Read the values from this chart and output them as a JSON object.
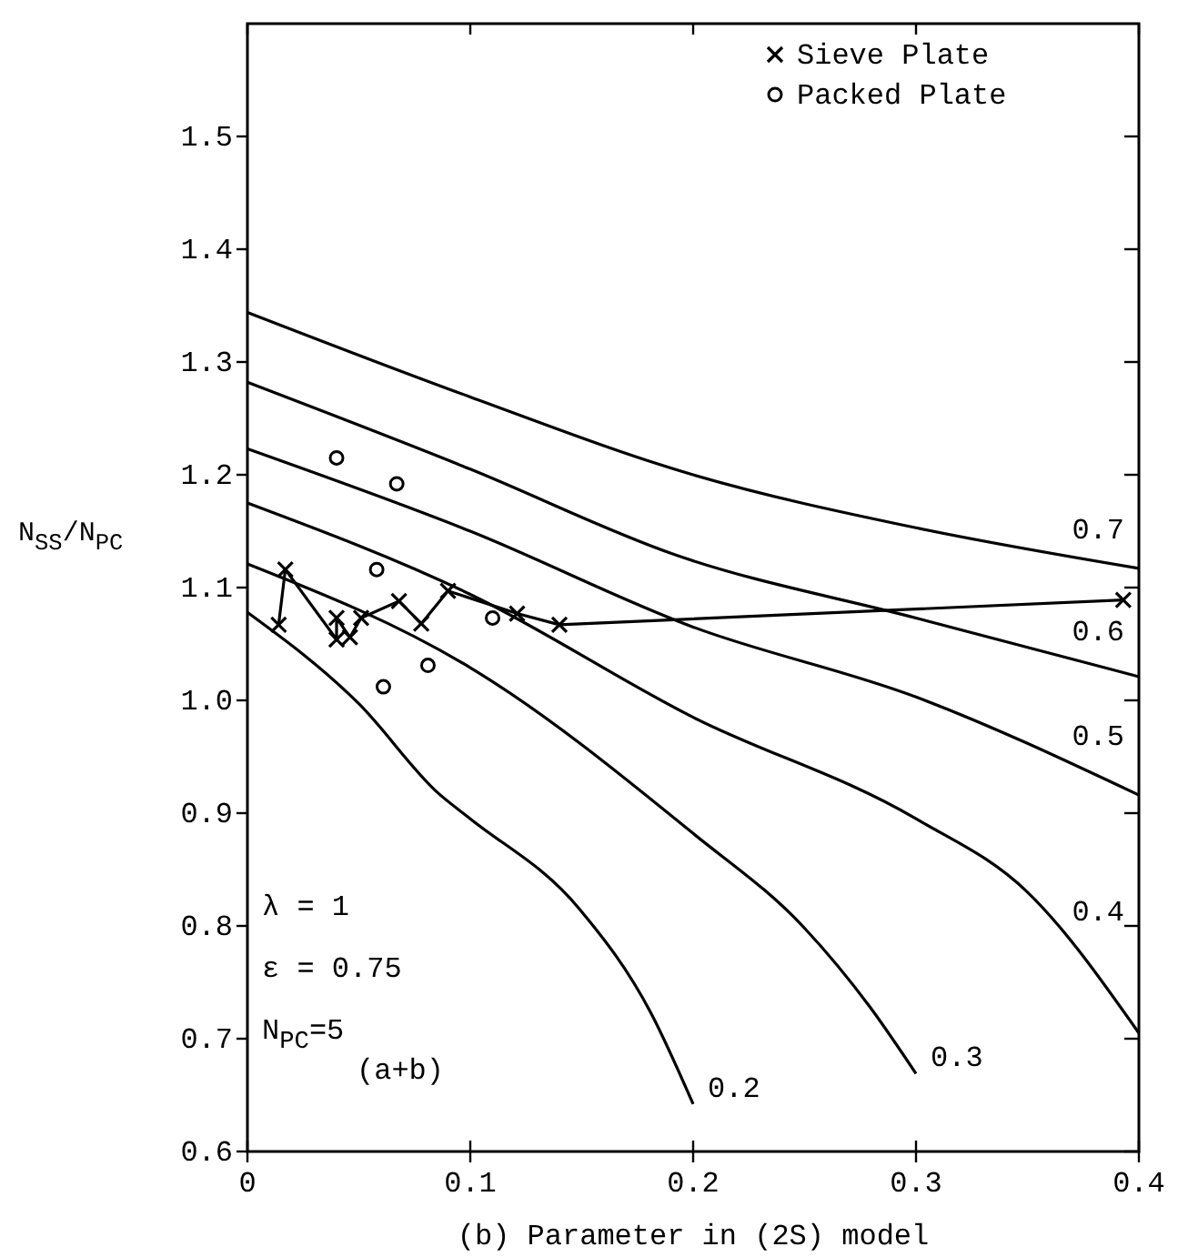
{
  "chart_data": {
    "type": "line",
    "xlabel": "(b) Parameter in (2S) model",
    "ylabel": "N$_{SS}$/N$_{PC}$",
    "xlim": [
      0,
      0.4
    ],
    "ylim": [
      0.6,
      1.6
    ],
    "xticks": [
      0,
      0.1,
      0.2,
      0.3,
      {
        "value": 0.4,
        "label": "0.4"
      }
    ],
    "yticks": [
      0.6,
      0.7,
      0.8,
      0.9,
      {
        "value": 1,
        "label": "1.0"
      },
      1.1,
      1.2,
      1.3,
      1.4,
      1.5
    ],
    "grid": false,
    "legend": "top right",
    "annotations": [
      "λ = 1",
      "ε = 0.75",
      "N$_{PC}$=5",
      "(a+b)"
    ],
    "series": [
      {
        "name": "0.7",
        "color": "#000000",
        "marker": "none",
        "x": [
          0,
          0.1,
          0.2,
          0.3,
          0.4
        ],
        "values": [
          1.344,
          1.269,
          1.2,
          1.153,
          1.117
        ]
      },
      {
        "name": "0.6",
        "color": "#000000",
        "marker": "none",
        "x": [
          0,
          0.1,
          0.192,
          0.3,
          0.4
        ],
        "values": [
          1.282,
          1.205,
          1.129,
          1.073,
          1.021
        ]
      },
      {
        "name": "0.5",
        "color": "#000000",
        "marker": "none",
        "x": [
          0,
          0.1,
          0.2,
          0.3,
          0.4
        ],
        "values": [
          1.223,
          1.15,
          1.065,
          1.003,
          0.916
        ]
      },
      {
        "name": "0.4",
        "color": "#000000",
        "marker": "none",
        "x": [
          0,
          0.1,
          0.2,
          0.3,
          0.35,
          0.4
        ],
        "values": [
          1.175,
          1.094,
          0.985,
          0.895,
          0.83,
          0.705
        ]
      },
      {
        "name": "0.3",
        "color": "#000000",
        "marker": "none",
        "x": [
          0,
          0.1,
          0.2,
          0.25,
          0.279,
          0.3
        ],
        "values": [
          1.121,
          1.029,
          0.882,
          0.798,
          0.729,
          0.669
        ]
      },
      {
        "name": "0.2",
        "color": "#000000",
        "marker": "none",
        "x": [
          0,
          0.05,
          0.086,
          0.1,
          0.149,
          0.181,
          0.2
        ],
        "values": [
          1.078,
          0.997,
          0.917,
          0.895,
          0.815,
          0.723,
          0.642
        ]
      },
      {
        "name": "Sieve Plate",
        "color": "#000000",
        "marker": "cross",
        "x": [
          0.014,
          0.017,
          0.04,
          0.04,
          0.046,
          0.051,
          0.068,
          0.078,
          0.09,
          0.121,
          0.14,
          0.393
        ],
        "values": [
          1.067,
          1.116,
          1.054,
          1.073,
          1.056,
          1.073,
          1.088,
          1.068,
          1.097,
          1.077,
          1.067,
          1.089
        ]
      },
      {
        "name": "Packed Plate",
        "type": "scatter",
        "color": "#000000",
        "marker": "circle",
        "x": [
          0.04,
          0.067,
          0.058,
          0.11,
          0.081,
          0.061
        ],
        "values": [
          1.215,
          1.192,
          1.116,
          1.073,
          1.031,
          1.012
        ]
      }
    ]
  }
}
